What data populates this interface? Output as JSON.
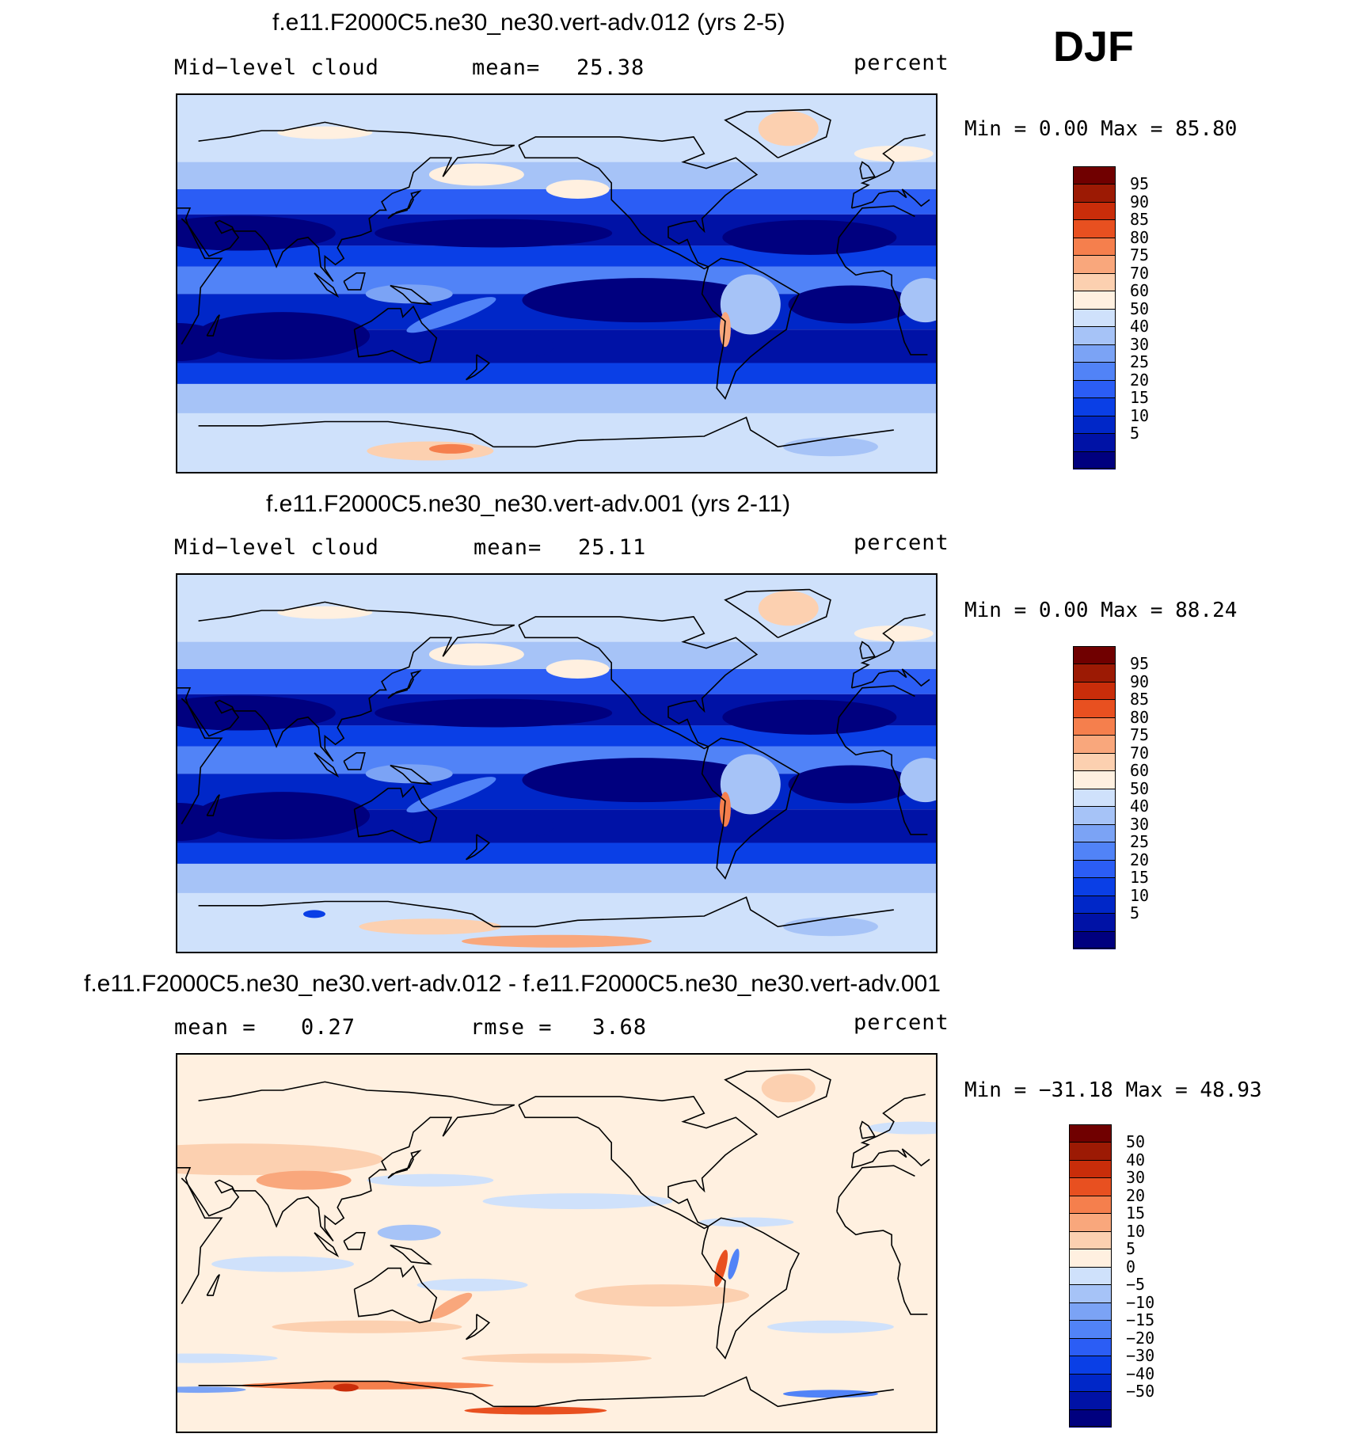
{
  "season": "DJF",
  "colors": {
    "abs_scale": [
      "#00007f",
      "#0012a6",
      "#0027c8",
      "#0a3fe6",
      "#2b5df5",
      "#5183f7",
      "#7ba3f5",
      "#a6c3f7",
      "#cfe1fb",
      "#fff0e0",
      "#fcd0b0",
      "#f9a77c",
      "#f57f4d",
      "#e85020",
      "#c92d0a",
      "#9c1a04",
      "#700000"
    ],
    "diff_scale": [
      "#00007f",
      "#0012a6",
      "#0027c8",
      "#0a3fe6",
      "#2b5df5",
      "#5183f7",
      "#7ba3f5",
      "#a6c3f7",
      "#cfe1fb",
      "#fff0e0",
      "#fcd0b0",
      "#f9a77c",
      "#f57f4d",
      "#e85020",
      "#c92d0a",
      "#9c1a04",
      "#700000"
    ]
  },
  "panels": [
    {
      "title": "f.e11.F2000C5.ne30_ne30.vert-adv.012 (yrs 2-5)",
      "left_label": "Mid−level cloud",
      "mid_label": "mean=",
      "mid_value": "25.38",
      "units": "percent",
      "minmax": "Min =    0.00 Max =   85.80"
    },
    {
      "title": "f.e11.F2000C5.ne30_ne30.vert-adv.001 (yrs 2-11)",
      "left_label": "Mid−level cloud",
      "mid_label": "mean=",
      "mid_value": "25.11",
      "units": "percent",
      "minmax": "Min =    0.00 Max =   88.24"
    },
    {
      "title": "f.e11.F2000C5.ne30_ne30.vert-adv.012 - f.e11.F2000C5.ne30_ne30.vert-adv.001",
      "left_label": "mean =",
      "left_value": "0.27",
      "mid_label": "rmse =",
      "mid_value": "3.68",
      "units": "percent",
      "minmax": "Min = −31.18 Max =   48.93"
    }
  ],
  "chart_data": [
    {
      "type": "heatmap",
      "title": "f.e11.F2000C5.ne30_ne30.vert-adv.012 (yrs 2-5)",
      "variable": "Mid−level cloud",
      "units": "percent",
      "mean": 25.38,
      "min": 0.0,
      "max": 85.8,
      "colorbar_levels": [
        95,
        90,
        85,
        80,
        75,
        70,
        60,
        50,
        40,
        30,
        25,
        20,
        15,
        10,
        5
      ]
    },
    {
      "type": "heatmap",
      "title": "f.e11.F2000C5.ne30_ne30.vert-adv.001 (yrs 2-11)",
      "variable": "Mid−level cloud",
      "units": "percent",
      "mean": 25.11,
      "min": 0.0,
      "max": 88.24,
      "colorbar_levels": [
        95,
        90,
        85,
        80,
        75,
        70,
        60,
        50,
        40,
        30,
        25,
        20,
        15,
        10,
        5
      ]
    },
    {
      "type": "heatmap",
      "title": "f.e11.F2000C5.ne30_ne30.vert-adv.012 - f.e11.F2000C5.ne30_ne30.vert-adv.001",
      "units": "percent",
      "mean": 0.27,
      "rmse": 3.68,
      "min": -31.18,
      "max": 48.93,
      "colorbar_levels": [
        "50",
        "40",
        "30",
        "20",
        "15",
        "10",
        "5",
        "0",
        "−5",
        "−10",
        "−15",
        "−20",
        "−30",
        "−40",
        "−50"
      ]
    }
  ]
}
